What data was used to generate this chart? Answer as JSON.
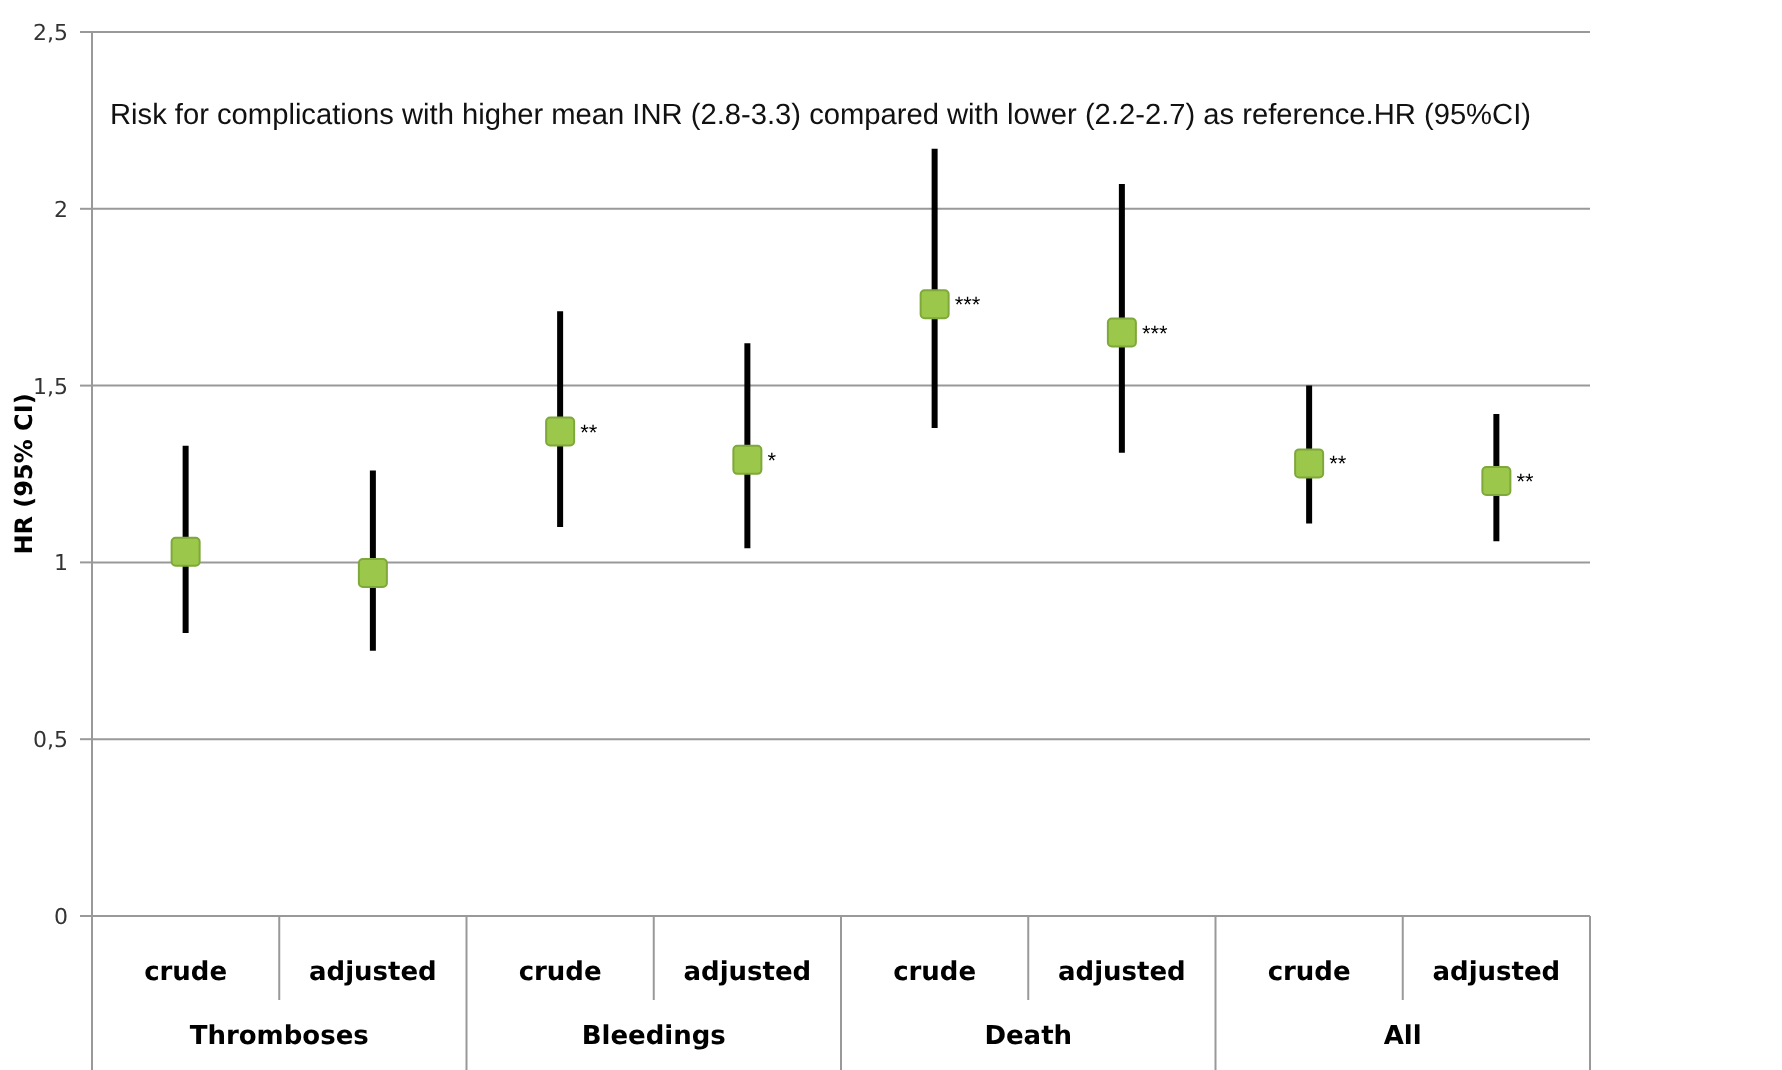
{
  "chart_data": {
    "type": "scatter",
    "title": "Risk for complications with higher mean INR (2.8-3.3) compared with lower (2.2-2.7) as reference.HR (95%CI)",
    "ylabel": "HR (95% CI)",
    "categories": [
      "crude",
      "adjusted",
      "crude",
      "adjusted",
      "crude",
      "adjusted",
      "crude",
      "adjusted"
    ],
    "series": [
      {
        "color": "#9bc84a",
        "values": [
          1.03,
          0.97,
          1.37,
          1.29,
          1.73,
          1.65,
          1.28,
          1.23
        ],
        "errors": [
          [
            0.8,
            1.33
          ],
          [
            0.75,
            1.26
          ],
          [
            1.1,
            1.71
          ],
          [
            1.04,
            1.62
          ],
          [
            1.38,
            2.17
          ],
          [
            1.31,
            2.07
          ],
          [
            1.11,
            1.5
          ],
          [
            1.06,
            1.42
          ]
        ],
        "value_labels": [
          null,
          null,
          "**",
          "*",
          "***",
          "***",
          "**",
          "**"
        ]
      }
    ],
    "annotations": [
      "Thromboses",
      "Bleedings",
      "Death",
      "All"
    ],
    "ylim": [
      0,
      2.5
    ],
    "yticks": [
      0,
      {
        "value": 0.5,
        "label": "0,5"
      },
      1,
      {
        "value": 1.5,
        "label": "1,5"
      },
      2,
      {
        "value": 2.5,
        "label": "2,5"
      }
    ],
    "grid": "y",
    "marker": "square"
  }
}
